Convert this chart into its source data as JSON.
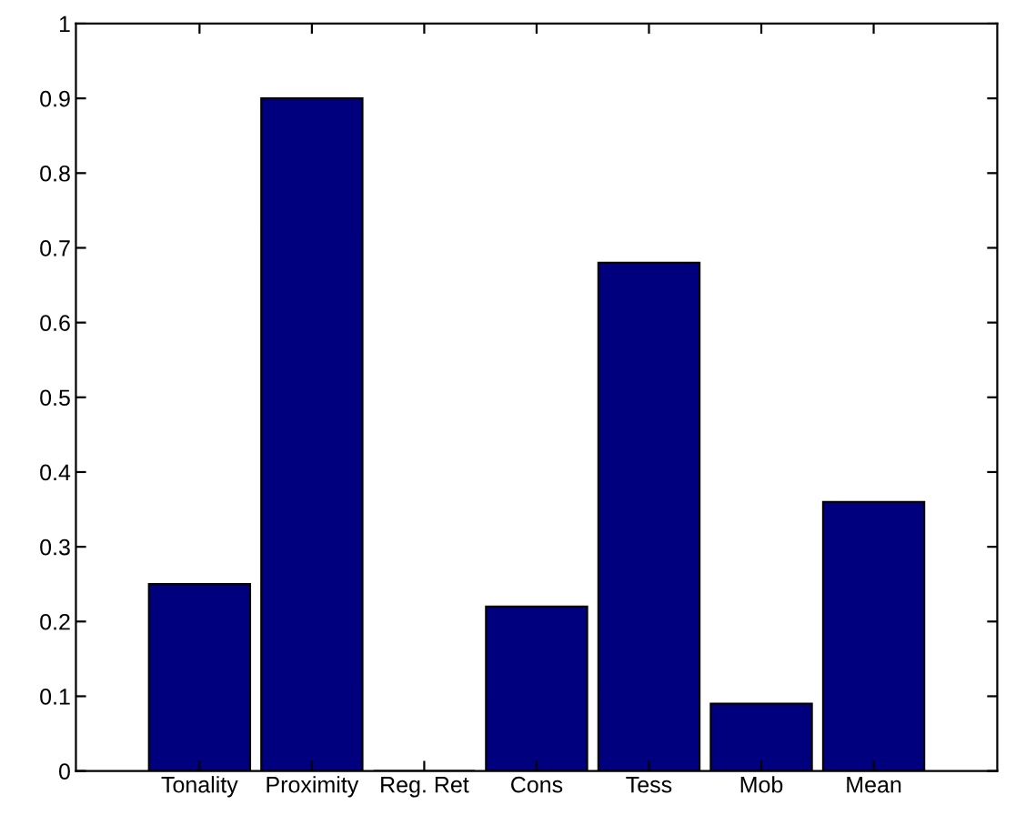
{
  "chart_data": {
    "type": "bar",
    "categories": [
      "Tonality",
      "Proximity",
      "Reg. Ret",
      "Cons",
      "Tess",
      "Mob",
      "Mean"
    ],
    "values": [
      0.25,
      0.9,
      0,
      0.22,
      0.68,
      0.09,
      0.36
    ],
    "color": "#00007f",
    "ylim": [
      0,
      1
    ],
    "yticks": [
      0,
      0.1,
      0.2,
      0.3,
      0.4,
      0.5,
      0.6,
      0.7,
      0.8,
      0.9,
      1
    ],
    "grid": false
  }
}
